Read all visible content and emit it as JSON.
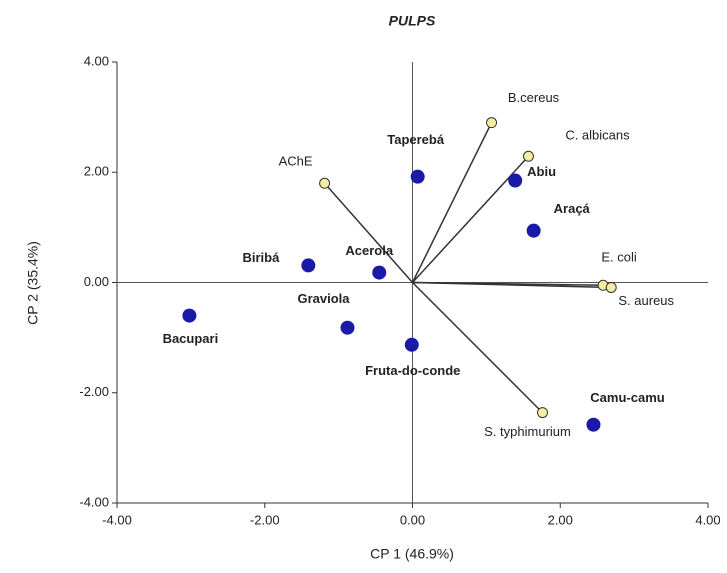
{
  "chart_data": {
    "type": "biplot",
    "title": "PULPS",
    "xlabel": "CP 1 (46.9%)",
    "ylabel": "CP 2 (35.4%)",
    "xlim": [
      -4,
      4
    ],
    "ylim": [
      -4,
      4
    ],
    "xticks": [
      {
        "value": -4,
        "label": "-4.00"
      },
      {
        "value": -2,
        "label": "-2.00"
      },
      {
        "value": 0,
        "label": "0.00"
      },
      {
        "value": 2,
        "label": "2.00"
      },
      {
        "value": 4,
        "label": "4.00"
      }
    ],
    "yticks": [
      {
        "value": -4,
        "label": "-4.00"
      },
      {
        "value": -2,
        "label": "-2.00"
      },
      {
        "value": 0,
        "label": "0.00"
      },
      {
        "value": 2,
        "label": "2.00"
      },
      {
        "value": 4,
        "label": "4.00"
      }
    ],
    "point_color": "#1a1aa8",
    "loading_color": "#f2f0a0",
    "points": [
      {
        "label": "Taperebá",
        "x": 0.07,
        "y": 1.92
      },
      {
        "label": "Abiu",
        "x": 1.39,
        "y": 1.85
      },
      {
        "label": "Araçá",
        "x": 1.64,
        "y": 0.94
      },
      {
        "label": "Biribá",
        "x": -1.41,
        "y": 0.31
      },
      {
        "label": "Acerola",
        "x": -0.45,
        "y": 0.18
      },
      {
        "label": "Graviola",
        "x": -0.88,
        "y": -0.82
      },
      {
        "label": "Bacupari",
        "x": -3.02,
        "y": -0.6
      },
      {
        "label": "Fruta-do-conde",
        "x": -0.01,
        "y": -1.13
      },
      {
        "label": "Camu-camu",
        "x": 2.45,
        "y": -2.58
      }
    ],
    "loadings": [
      {
        "label": "AChE",
        "x": -1.19,
        "y": 1.8
      },
      {
        "label": "B.cereus",
        "x": 1.07,
        "y": 2.9
      },
      {
        "label": "C. albicans",
        "x": 1.57,
        "y": 2.29
      },
      {
        "label": "E. coli",
        "x": 2.58,
        "y": -0.05
      },
      {
        "label": "S. aureus",
        "x": 2.69,
        "y": -0.09
      },
      {
        "label": "S. typhimurium",
        "x": 1.76,
        "y": -2.36
      }
    ]
  }
}
